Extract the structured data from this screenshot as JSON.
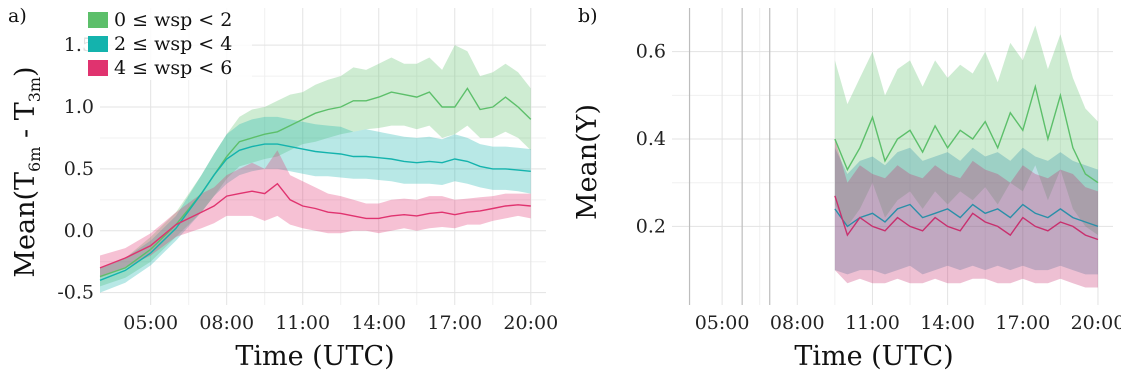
{
  "chart_data": [
    {
      "panel": "a)",
      "type": "line",
      "xlabel": "Time (UTC)",
      "ylabel": "Mean(T6m - T3m)",
      "ylabel_main": "Mean(T",
      "ylabel_sub1": "6m",
      "ylabel_mid": " - T",
      "ylabel_sub2": "3m",
      "ylabel_end": ")",
      "xlim": [
        3.0,
        20.6
      ],
      "ylim": [
        -0.6,
        1.8
      ],
      "xticks": [
        5,
        8,
        11,
        14,
        17,
        20
      ],
      "xtick_labels": [
        "05:00",
        "08:00",
        "11:00",
        "14:00",
        "17:00",
        "20:00"
      ],
      "yticks": [
        -0.5,
        0.0,
        0.5,
        1.0,
        1.5
      ],
      "ytick_labels": [
        "-0.5",
        "0.0",
        "0.5",
        "1.0",
        "1.5"
      ],
      "legend_position": "top-left",
      "series": [
        {
          "name": "0 ≤ wsp < 2",
          "color": "#5cbf6a",
          "x": [
            3.0,
            4.0,
            5.0,
            6.0,
            7.0,
            7.5,
            8.0,
            8.5,
            9.0,
            9.5,
            10.0,
            10.5,
            11.0,
            11.5,
            12.0,
            12.5,
            13.0,
            13.5,
            14.0,
            14.5,
            15.0,
            15.5,
            16.0,
            16.5,
            17.0,
            17.5,
            18.0,
            18.5,
            19.0,
            19.5,
            20.0
          ],
          "y": [
            -0.37,
            -0.3,
            -0.15,
            0.05,
            0.3,
            0.45,
            0.6,
            0.72,
            0.75,
            0.78,
            0.8,
            0.85,
            0.9,
            0.95,
            0.98,
            1.0,
            1.05,
            1.05,
            1.08,
            1.12,
            1.1,
            1.08,
            1.12,
            1.0,
            1.0,
            1.15,
            0.98,
            1.0,
            1.08,
            1.0,
            0.9
          ],
          "lower": [
            -0.45,
            -0.38,
            -0.25,
            -0.05,
            0.15,
            0.28,
            0.42,
            0.52,
            0.55,
            0.58,
            0.6,
            0.65,
            0.7,
            0.72,
            0.75,
            0.78,
            0.8,
            0.82,
            0.83,
            0.85,
            0.85,
            0.82,
            0.85,
            0.75,
            0.78,
            0.85,
            0.75,
            0.75,
            0.8,
            0.75,
            0.65
          ],
          "upper": [
            -0.3,
            -0.22,
            -0.05,
            0.15,
            0.45,
            0.62,
            0.78,
            0.92,
            0.98,
            1.0,
            1.05,
            1.1,
            1.12,
            1.18,
            1.22,
            1.25,
            1.32,
            1.3,
            1.35,
            1.4,
            1.35,
            1.35,
            1.4,
            1.3,
            1.5,
            1.45,
            1.25,
            1.28,
            1.35,
            1.28,
            1.15
          ]
        },
        {
          "name": "2 ≤ wsp < 4",
          "color": "#14b3ad",
          "x": [
            3.0,
            4.0,
            5.0,
            6.0,
            7.0,
            7.5,
            8.0,
            8.5,
            9.0,
            9.5,
            10.0,
            10.5,
            11.0,
            11.5,
            12.0,
            12.5,
            13.0,
            13.5,
            14.0,
            14.5,
            15.0,
            15.5,
            16.0,
            16.5,
            17.0,
            17.5,
            18.0,
            18.5,
            19.0,
            19.5,
            20.0
          ],
          "y": [
            -0.4,
            -0.32,
            -0.18,
            0.02,
            0.3,
            0.45,
            0.58,
            0.65,
            0.68,
            0.7,
            0.7,
            0.68,
            0.66,
            0.64,
            0.63,
            0.62,
            0.6,
            0.6,
            0.59,
            0.58,
            0.56,
            0.55,
            0.56,
            0.55,
            0.58,
            0.56,
            0.52,
            0.5,
            0.5,
            0.49,
            0.48
          ],
          "lower": [
            -0.5,
            -0.42,
            -0.28,
            -0.08,
            0.15,
            0.28,
            0.38,
            0.45,
            0.48,
            0.5,
            0.5,
            0.48,
            0.46,
            0.44,
            0.44,
            0.43,
            0.42,
            0.42,
            0.41,
            0.4,
            0.38,
            0.38,
            0.38,
            0.37,
            0.4,
            0.38,
            0.35,
            0.33,
            0.33,
            0.32,
            0.3
          ],
          "upper": [
            -0.3,
            -0.22,
            -0.08,
            0.12,
            0.45,
            0.62,
            0.78,
            0.86,
            0.9,
            0.92,
            0.92,
            0.9,
            0.88,
            0.86,
            0.85,
            0.84,
            0.8,
            0.82,
            0.8,
            0.78,
            0.76,
            0.75,
            0.76,
            0.74,
            0.78,
            0.75,
            0.7,
            0.68,
            0.68,
            0.67,
            0.66
          ]
        },
        {
          "name": "4 ≤ wsp < 6",
          "color": "#e0336f",
          "x": [
            3.0,
            4.0,
            5.0,
            6.0,
            7.0,
            7.5,
            8.0,
            8.5,
            9.0,
            9.5,
            10.0,
            10.5,
            11.0,
            11.5,
            12.0,
            12.5,
            13.0,
            13.5,
            14.0,
            14.5,
            15.0,
            15.5,
            16.0,
            16.5,
            17.0,
            17.5,
            18.0,
            18.5,
            19.0,
            19.5,
            20.0
          ],
          "y": [
            -0.3,
            -0.22,
            -0.12,
            0.05,
            0.15,
            0.2,
            0.28,
            0.3,
            0.32,
            0.3,
            0.38,
            0.25,
            0.2,
            0.18,
            0.15,
            0.14,
            0.12,
            0.1,
            0.1,
            0.12,
            0.13,
            0.12,
            0.14,
            0.15,
            0.13,
            0.15,
            0.16,
            0.18,
            0.2,
            0.21,
            0.2
          ],
          "lower": [
            -0.38,
            -0.3,
            -0.2,
            -0.05,
            0.02,
            0.06,
            0.12,
            0.12,
            0.12,
            0.08,
            0.12,
            0.05,
            0.02,
            0.0,
            -0.02,
            -0.02,
            0.0,
            0.0,
            -0.02,
            0.0,
            0.02,
            0.0,
            0.02,
            0.03,
            0.02,
            0.05,
            0.05,
            0.08,
            0.1,
            0.12,
            0.1
          ],
          "upper": [
            -0.2,
            -0.14,
            -0.02,
            0.15,
            0.3,
            0.35,
            0.45,
            0.5,
            0.55,
            0.5,
            0.65,
            0.45,
            0.4,
            0.35,
            0.3,
            0.28,
            0.25,
            0.22,
            0.22,
            0.25,
            0.26,
            0.25,
            0.28,
            0.28,
            0.25,
            0.26,
            0.27,
            0.28,
            0.3,
            0.3,
            0.3
          ]
        }
      ]
    },
    {
      "panel": "b)",
      "type": "line",
      "xlabel": "Time (UTC)",
      "ylabel": "Mean(Y)",
      "xlim": [
        3.0,
        20.6
      ],
      "ylim": [
        0.02,
        0.7
      ],
      "xticks": [
        5,
        8,
        11,
        14,
        17,
        20
      ],
      "xtick_labels": [
        "05:00",
        "08:00",
        "11:00",
        "14:00",
        "17:00",
        "20:00"
      ],
      "yticks": [
        0.2,
        0.4,
        0.6
      ],
      "ytick_labels": [
        "0.2",
        "0.4",
        "0.6"
      ],
      "vertical_lines_x": [
        3.7,
        5.8,
        6.9
      ],
      "series": [
        {
          "name": "0 ≤ wsp < 2",
          "color": "#5cbf6a",
          "x": [
            9.5,
            10.0,
            10.5,
            11.0,
            11.5,
            12.0,
            12.5,
            13.0,
            13.5,
            14.0,
            14.5,
            15.0,
            15.5,
            16.0,
            16.5,
            17.0,
            17.5,
            18.0,
            18.5,
            19.0,
            19.5,
            20.0
          ],
          "y": [
            0.4,
            0.33,
            0.38,
            0.45,
            0.35,
            0.4,
            0.42,
            0.37,
            0.43,
            0.38,
            0.42,
            0.4,
            0.44,
            0.38,
            0.46,
            0.42,
            0.52,
            0.4,
            0.5,
            0.38,
            0.32,
            0.3
          ],
          "lower": [
            0.25,
            0.2,
            0.24,
            0.3,
            0.22,
            0.26,
            0.28,
            0.24,
            0.28,
            0.25,
            0.28,
            0.26,
            0.29,
            0.25,
            0.3,
            0.28,
            0.34,
            0.26,
            0.33,
            0.24,
            0.2,
            0.18
          ],
          "upper": [
            0.58,
            0.48,
            0.54,
            0.6,
            0.5,
            0.56,
            0.58,
            0.52,
            0.58,
            0.54,
            0.57,
            0.55,
            0.6,
            0.53,
            0.62,
            0.58,
            0.66,
            0.56,
            0.64,
            0.54,
            0.47,
            0.44
          ]
        },
        {
          "name": "2 ≤ wsp < 4",
          "color": "#2a8fa8",
          "x": [
            9.5,
            10.0,
            10.5,
            11.0,
            11.5,
            12.0,
            12.5,
            13.0,
            13.5,
            14.0,
            14.5,
            15.0,
            15.5,
            16.0,
            16.5,
            17.0,
            17.5,
            18.0,
            18.5,
            19.0,
            19.5,
            20.0
          ],
          "y": [
            0.24,
            0.2,
            0.22,
            0.23,
            0.21,
            0.24,
            0.25,
            0.22,
            0.23,
            0.24,
            0.22,
            0.25,
            0.23,
            0.24,
            0.22,
            0.25,
            0.23,
            0.22,
            0.24,
            0.22,
            0.21,
            0.2
          ],
          "lower": [
            0.1,
            0.09,
            0.1,
            0.1,
            0.09,
            0.1,
            0.11,
            0.09,
            0.1,
            0.11,
            0.1,
            0.11,
            0.1,
            0.11,
            0.1,
            0.11,
            0.1,
            0.1,
            0.11,
            0.1,
            0.09,
            0.09
          ],
          "upper": [
            0.38,
            0.32,
            0.35,
            0.36,
            0.34,
            0.37,
            0.38,
            0.35,
            0.36,
            0.37,
            0.35,
            0.38,
            0.36,
            0.37,
            0.35,
            0.38,
            0.36,
            0.35,
            0.37,
            0.35,
            0.34,
            0.33
          ]
        },
        {
          "name": "4 ≤ wsp < 6",
          "color": "#c8306e",
          "x": [
            9.5,
            10.0,
            10.5,
            11.0,
            11.5,
            12.0,
            12.5,
            13.0,
            13.5,
            14.0,
            14.5,
            15.0,
            15.5,
            16.0,
            16.5,
            17.0,
            17.5,
            18.0,
            18.5,
            19.0,
            19.5,
            20.0
          ],
          "y": [
            0.27,
            0.18,
            0.22,
            0.2,
            0.19,
            0.22,
            0.2,
            0.19,
            0.22,
            0.2,
            0.19,
            0.23,
            0.21,
            0.2,
            0.18,
            0.22,
            0.2,
            0.19,
            0.21,
            0.2,
            0.18,
            0.17
          ],
          "lower": [
            0.1,
            0.07,
            0.08,
            0.07,
            0.07,
            0.08,
            0.07,
            0.07,
            0.08,
            0.07,
            0.07,
            0.08,
            0.08,
            0.07,
            0.07,
            0.08,
            0.07,
            0.07,
            0.08,
            0.07,
            0.06,
            0.06
          ],
          "upper": [
            0.4,
            0.3,
            0.34,
            0.32,
            0.31,
            0.34,
            0.32,
            0.31,
            0.34,
            0.32,
            0.31,
            0.35,
            0.33,
            0.32,
            0.3,
            0.34,
            0.32,
            0.31,
            0.33,
            0.32,
            0.29,
            0.28
          ]
        }
      ]
    }
  ]
}
